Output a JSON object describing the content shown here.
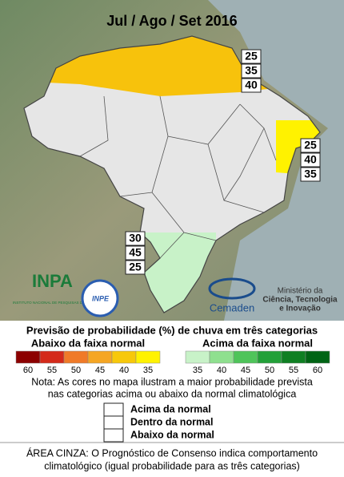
{
  "title": "Jul / Ago / Set 2016",
  "map_boxes": [
    {
      "values": [
        "25",
        "35",
        "40"
      ]
    },
    {
      "values": [
        "25",
        "40",
        "35"
      ]
    },
    {
      "values": [
        "30",
        "45",
        "25"
      ]
    }
  ],
  "logos": {
    "inpa": "INPA",
    "inpa_sub": "INSTITUTO NACIONAL DE PESQUISAS DA AMAZÔNIA",
    "inpe": "INPE",
    "cemaden": "Cemaden",
    "ministry": [
      "Ministério da",
      "Ciência, Tecnologia",
      "e Inovação"
    ]
  },
  "legend": {
    "title": "Previsão de probabilidade (%) de chuva em três categorias",
    "below": {
      "label": "Abaixo da faixa normal",
      "ticks": [
        "60",
        "55",
        "50",
        "45",
        "40",
        "35"
      ],
      "colors": [
        "#8c0000",
        "#d42a1a",
        "#f07a28",
        "#f5a623",
        "#f7c80a",
        "#fff200"
      ]
    },
    "above": {
      "label": "Acima da faixa normal",
      "ticks": [
        "35",
        "40",
        "45",
        "50",
        "55",
        "60"
      ],
      "colors": [
        "#c8f2c8",
        "#8fe08f",
        "#4fc45a",
        "#22a038",
        "#0f7f22",
        "#006414"
      ]
    },
    "note": [
      "Nota: As cores no mapa ilustram a maior probabilidade prevista",
      "nas categorias acima ou abaixo da normal climatológica"
    ],
    "box_rows": [
      "Acima da normal",
      "Dentro da normal",
      "Abaixo da normal"
    ]
  },
  "footer": [
    "ÁREA CINZA: O Prognóstico de Consenso indica comportamento",
    "climatológico (igual probabilidade para as três categorias)"
  ]
}
